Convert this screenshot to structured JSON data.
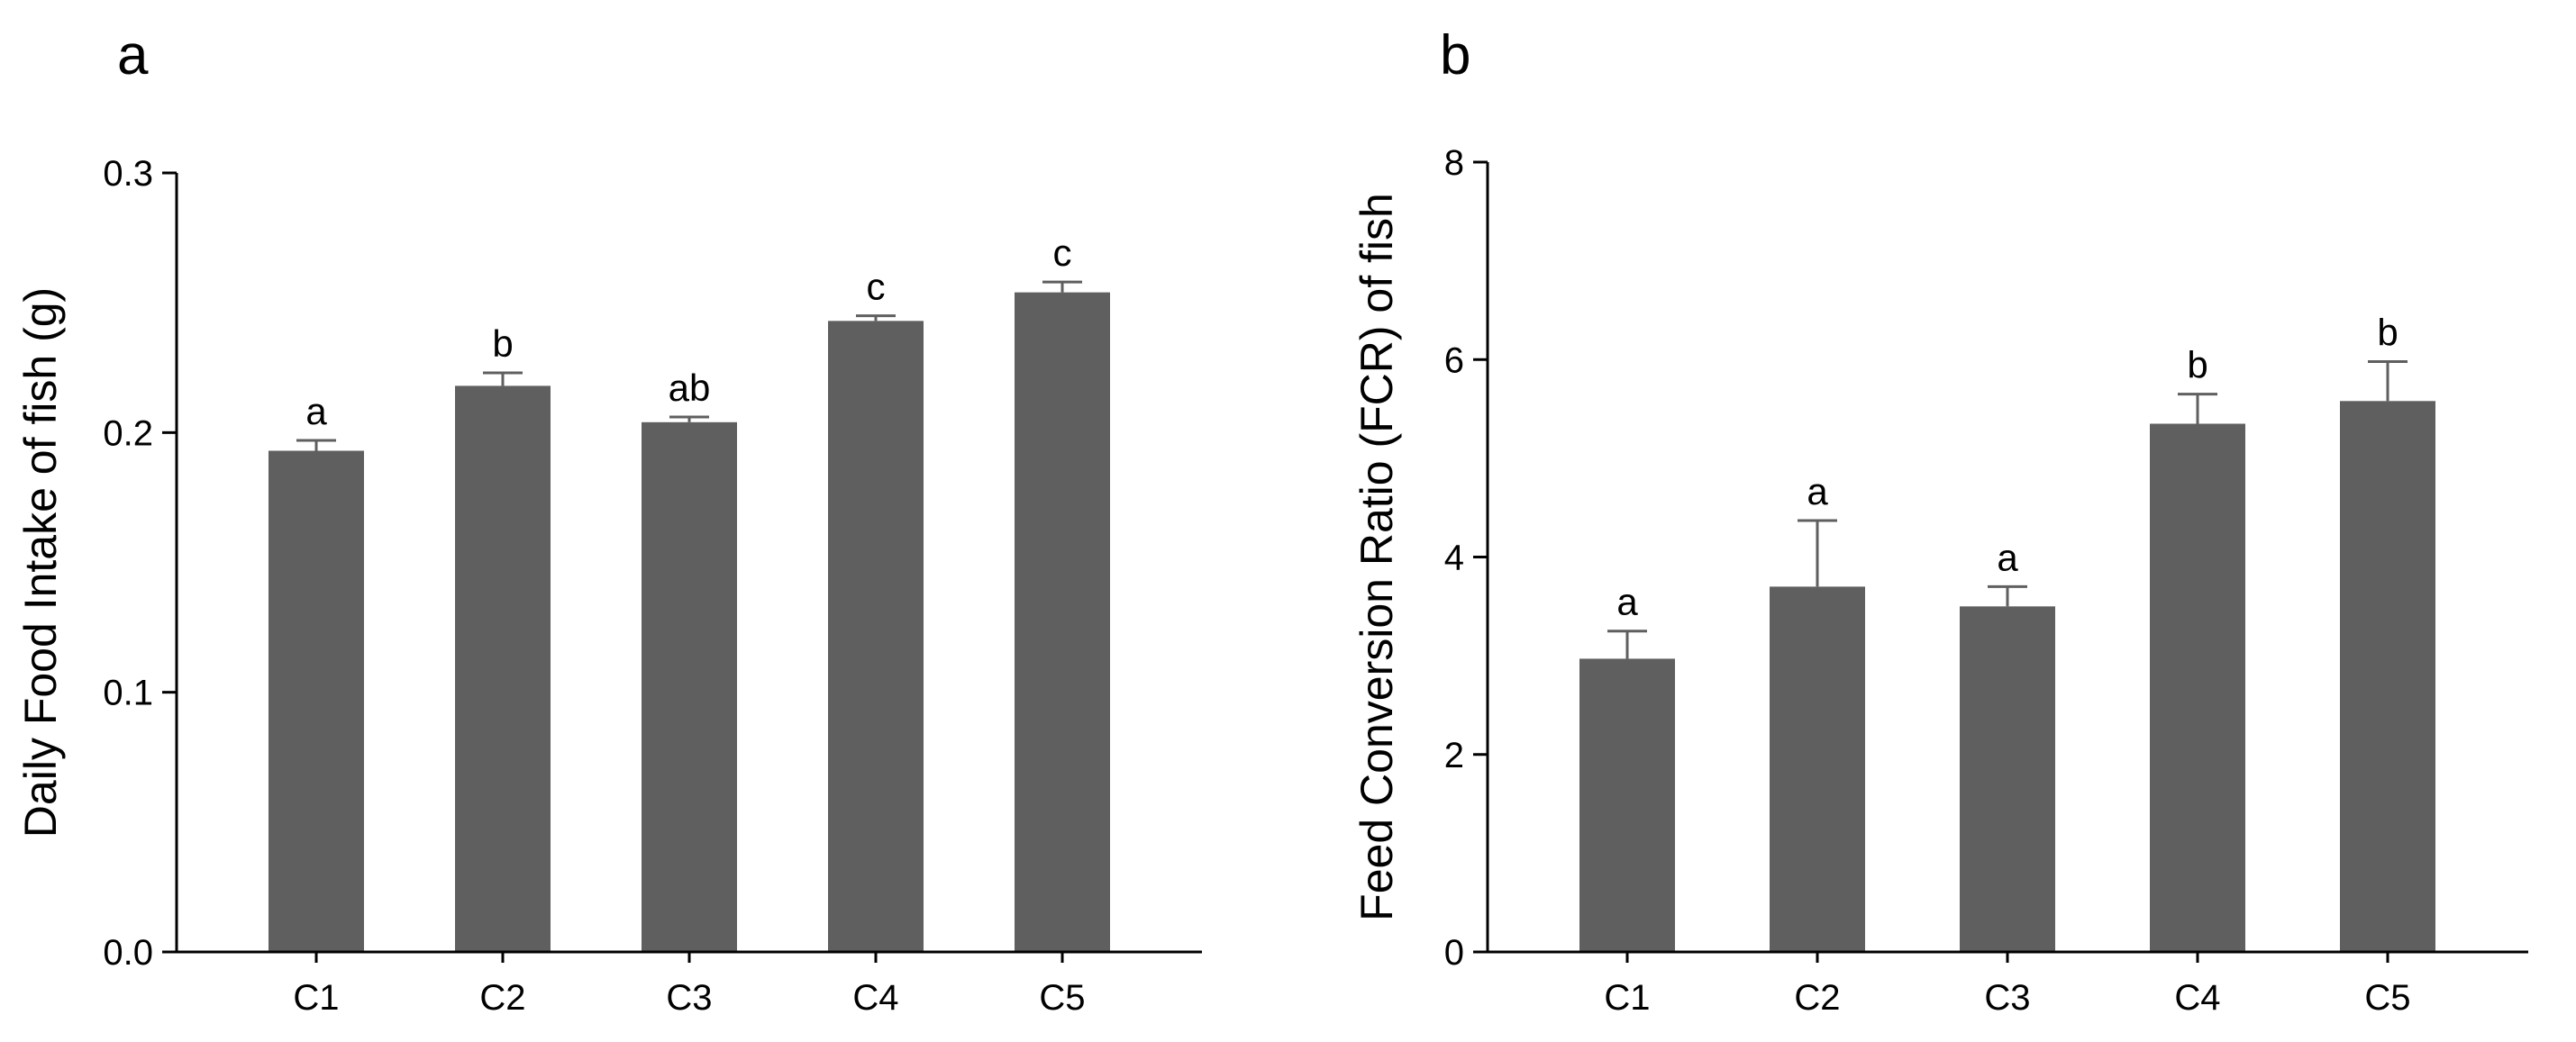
{
  "chart_data": [
    {
      "type": "bar",
      "panel": "a",
      "categories": [
        "C1",
        "C2",
        "C3",
        "C4",
        "C5"
      ],
      "values": [
        0.193,
        0.218,
        0.204,
        0.243,
        0.254
      ],
      "error": [
        0.004,
        0.005,
        0.002,
        0.002,
        0.004
      ],
      "significance": [
        "a",
        "b",
        "ab",
        "c",
        "c"
      ],
      "ylabel": "Daily Food Intake of fish (g)",
      "xlabel": "",
      "ylim": [
        0,
        0.3
      ],
      "yticks": [
        0.0,
        0.1,
        0.2,
        0.3
      ],
      "ytick_labels": [
        "0.0",
        "0.1",
        "0.2",
        "0.3"
      ],
      "bar_color": "#5f5f5f",
      "grid": false,
      "legend": "none"
    },
    {
      "type": "bar",
      "panel": "b",
      "categories": [
        "C1",
        "C2",
        "C3",
        "C4",
        "C5"
      ],
      "values": [
        2.97,
        3.7,
        3.5,
        5.35,
        5.58
      ],
      "error": [
        0.28,
        0.67,
        0.2,
        0.3,
        0.4
      ],
      "significance": [
        "a",
        "a",
        "a",
        "b",
        "b"
      ],
      "ylabel": "Feed Conversion Ratio (FCR) of fish",
      "xlabel": "",
      "ylim": [
        0,
        8
      ],
      "yticks": [
        0,
        2,
        4,
        6,
        8
      ],
      "ytick_labels": [
        "0",
        "2",
        "4",
        "6",
        "8"
      ],
      "bar_color": "#5f5f5f",
      "grid": false,
      "legend": "none"
    }
  ]
}
